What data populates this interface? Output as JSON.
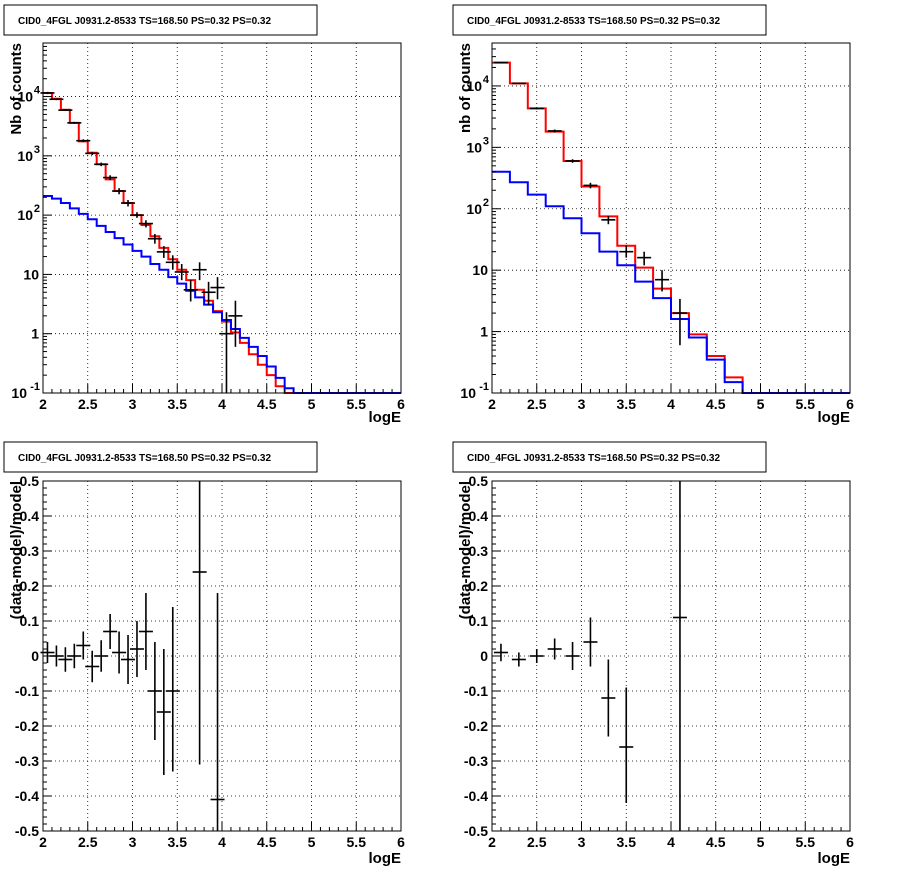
{
  "chart_data": [
    {
      "type": "line",
      "panel": "top-left",
      "title": "CID0_4FGL J0931.2-8533 TS=168.50 PS=0.32 PS=0.32",
      "xlabel": "logE",
      "ylabel": "Nb of counts",
      "xlim": [
        2,
        6
      ],
      "ylim": [
        0.1,
        80000
      ],
      "yscale": "log",
      "xticks": [
        "2",
        "2.5",
        "3",
        "3.5",
        "4",
        "4.5",
        "5",
        "5.5",
        "6"
      ],
      "yticks": [
        {
          "v": 0.1,
          "label": "10",
          "exp": "-1"
        },
        {
          "v": 1,
          "label": "1",
          "exp": ""
        },
        {
          "v": 10,
          "label": "10",
          "exp": ""
        },
        {
          "v": 100,
          "label": "10",
          "exp": "2"
        },
        {
          "v": 1000,
          "label": "10",
          "exp": "3"
        },
        {
          "v": 10000,
          "label": "10",
          "exp": "4"
        }
      ],
      "grid": true,
      "bin_edges": [
        2.0,
        2.1,
        2.2,
        2.3,
        2.4,
        2.5,
        2.6,
        2.7,
        2.8,
        2.9,
        3.0,
        3.1,
        3.2,
        3.3,
        3.4,
        3.5,
        3.6,
        3.7,
        3.8,
        3.9,
        4.0,
        4.1,
        4.2,
        4.3,
        4.4,
        4.5,
        4.6,
        4.7,
        4.8,
        4.9,
        5.0,
        5.1,
        5.2,
        5.3,
        5.4,
        5.5,
        5.6,
        5.7,
        5.8,
        5.9,
        6.0
      ],
      "series": [
        {
          "color": "#ff0000",
          "values": [
            11500,
            9200,
            6000,
            3600,
            1750,
            1130,
            720,
            400,
            255,
            160,
            100,
            68,
            44,
            28,
            18,
            12,
            8,
            5.5,
            3.6,
            2.4,
            1.6,
            1.05,
            0.7,
            0.45,
            0.3,
            0.2,
            0.13,
            0.1,
            0.1,
            0.1,
            0.1,
            0.1,
            0.1,
            0.1,
            0.1,
            0.1,
            0.1,
            0.1,
            0.1,
            0.1
          ]
        },
        {
          "color": "#0000ff",
          "values": [
            210,
            190,
            160,
            130,
            105,
            85,
            66,
            52,
            41,
            32,
            25,
            20,
            15,
            12,
            9,
            7,
            5.3,
            4.1,
            3.1,
            2.3,
            1.7,
            1.2,
            0.85,
            0.6,
            0.42,
            0.28,
            0.18,
            0.12,
            0.1,
            0.1,
            0.1,
            0.1,
            0.1,
            0.1,
            0.1,
            0.1,
            0.1,
            0.1,
            0.1,
            0.1
          ]
        }
      ],
      "points": [
        {
          "x": 2.05,
          "y": 11500,
          "ylo": 11000,
          "yhi": 12000
        },
        {
          "x": 2.15,
          "y": 9000,
          "ylo": 8700,
          "yhi": 9300
        },
        {
          "x": 2.25,
          "y": 5900,
          "ylo": 5700,
          "yhi": 6100
        },
        {
          "x": 2.35,
          "y": 3600,
          "ylo": 3450,
          "yhi": 3750
        },
        {
          "x": 2.45,
          "y": 1800,
          "ylo": 1700,
          "yhi": 1900
        },
        {
          "x": 2.55,
          "y": 1100,
          "ylo": 1030,
          "yhi": 1170
        },
        {
          "x": 2.65,
          "y": 720,
          "ylo": 670,
          "yhi": 770
        },
        {
          "x": 2.75,
          "y": 430,
          "ylo": 390,
          "yhi": 470
        },
        {
          "x": 2.85,
          "y": 255,
          "ylo": 225,
          "yhi": 285
        },
        {
          "x": 2.95,
          "y": 160,
          "ylo": 140,
          "yhi": 180
        },
        {
          "x": 3.05,
          "y": 100,
          "ylo": 90,
          "yhi": 112
        },
        {
          "x": 3.15,
          "y": 72,
          "ylo": 62,
          "yhi": 82
        },
        {
          "x": 3.25,
          "y": 40,
          "ylo": 33,
          "yhi": 48
        },
        {
          "x": 3.35,
          "y": 24,
          "ylo": 19,
          "yhi": 30
        },
        {
          "x": 3.45,
          "y": 16,
          "ylo": 12,
          "yhi": 21
        },
        {
          "x": 3.55,
          "y": 11,
          "ylo": 8,
          "yhi": 15
        },
        {
          "x": 3.65,
          "y": 5.5,
          "ylo": 3.5,
          "yhi": 8
        },
        {
          "x": 3.75,
          "y": 12,
          "ylo": 8,
          "yhi": 16
        },
        {
          "x": 3.85,
          "y": 5,
          "ylo": 3,
          "yhi": 7.5
        },
        {
          "x": 3.95,
          "y": 6,
          "ylo": 3.8,
          "yhi": 9
        },
        {
          "x": 4.05,
          "y": 1,
          "ylo": 0.1,
          "yhi": 2.3
        },
        {
          "x": 4.15,
          "y": 2,
          "ylo": 0.6,
          "yhi": 3.6
        }
      ]
    },
    {
      "type": "line",
      "panel": "top-right",
      "title": "CID0_4FGL J0931.2-8533 TS=168.50 PS=0.32 PS=0.32",
      "xlabel": "logE",
      "ylabel": "nb of counts",
      "xlim": [
        2,
        6
      ],
      "ylim": [
        0.1,
        50000
      ],
      "yscale": "log",
      "xticks": [
        "2",
        "2.5",
        "3",
        "3.5",
        "4",
        "4.5",
        "5",
        "5.5",
        "6"
      ],
      "yticks": [
        {
          "v": 0.1,
          "label": "10",
          "exp": "-1"
        },
        {
          "v": 1,
          "label": "1",
          "exp": ""
        },
        {
          "v": 10,
          "label": "10",
          "exp": ""
        },
        {
          "v": 100,
          "label": "10",
          "exp": "2"
        },
        {
          "v": 1000,
          "label": "10",
          "exp": "3"
        },
        {
          "v": 10000,
          "label": "10",
          "exp": "4"
        }
      ],
      "grid": true,
      "bin_edges": [
        2.0,
        2.2,
        2.4,
        2.6,
        2.8,
        3.0,
        3.2,
        3.4,
        3.6,
        3.8,
        4.0,
        4.2,
        4.4,
        4.6,
        4.8,
        5.0,
        5.2,
        5.4,
        5.6,
        5.8,
        6.0
      ],
      "series": [
        {
          "color": "#ff0000",
          "values": [
            24000,
            11000,
            4300,
            1800,
            600,
            230,
            75,
            25,
            11,
            5,
            2,
            0.9,
            0.4,
            0.18,
            0.1,
            0.1,
            0.1,
            0.1,
            0.1,
            0.1
          ]
        },
        {
          "color": "#0000ff",
          "values": [
            400,
            270,
            170,
            110,
            70,
            40,
            20,
            12,
            6.5,
            3.5,
            1.6,
            0.8,
            0.35,
            0.15,
            0.1,
            0.1,
            0.1,
            0.1,
            0.1,
            0.1
          ]
        }
      ],
      "points": [
        {
          "x": 2.1,
          "y": 24000,
          "ylo": 23500,
          "yhi": 24500
        },
        {
          "x": 2.3,
          "y": 11000,
          "ylo": 10700,
          "yhi": 11300
        },
        {
          "x": 2.5,
          "y": 4300,
          "ylo": 4150,
          "yhi": 4450
        },
        {
          "x": 2.7,
          "y": 1850,
          "ylo": 1750,
          "yhi": 1950
        },
        {
          "x": 2.9,
          "y": 600,
          "ylo": 560,
          "yhi": 640
        },
        {
          "x": 3.1,
          "y": 240,
          "ylo": 215,
          "yhi": 265
        },
        {
          "x": 3.3,
          "y": 66,
          "ylo": 56,
          "yhi": 76
        },
        {
          "x": 3.5,
          "y": 20,
          "ylo": 16,
          "yhi": 25
        },
        {
          "x": 3.7,
          "y": 16,
          "ylo": 12,
          "yhi": 20
        },
        {
          "x": 3.9,
          "y": 7,
          "ylo": 4.5,
          "yhi": 10
        },
        {
          "x": 4.1,
          "y": 2,
          "ylo": 0.6,
          "yhi": 3.4
        }
      ]
    },
    {
      "type": "scatter",
      "panel": "bottom-left",
      "title": "CID0_4FGL J0931.2-8533 TS=168.50 PS=0.32 PS=0.32",
      "xlabel": "logE",
      "ylabel": "(data-model)/model",
      "xlim": [
        2,
        6
      ],
      "ylim": [
        -0.5,
        0.5
      ],
      "xticks": [
        "2",
        "2.5",
        "3",
        "3.5",
        "4",
        "4.5",
        "5",
        "5.5",
        "6"
      ],
      "yticks": [
        "-0.5",
        "-0.4",
        "-0.3",
        "-0.2",
        "-0.1",
        "0",
        "0.1",
        "0.2",
        "0.3",
        "0.4",
        "0.5"
      ],
      "grid": true,
      "points": [
        {
          "x": 2.05,
          "y": 0.01,
          "ylo": -0.02,
          "yhi": 0.04
        },
        {
          "x": 2.15,
          "y": 0.0,
          "ylo": -0.03,
          "yhi": 0.03
        },
        {
          "x": 2.25,
          "y": -0.01,
          "ylo": -0.045,
          "yhi": 0.025
        },
        {
          "x": 2.35,
          "y": 0.0,
          "ylo": -0.035,
          "yhi": 0.035
        },
        {
          "x": 2.45,
          "y": 0.03,
          "ylo": -0.01,
          "yhi": 0.07
        },
        {
          "x": 2.55,
          "y": -0.03,
          "ylo": -0.075,
          "yhi": 0.015
        },
        {
          "x": 2.65,
          "y": 0.0,
          "ylo": -0.045,
          "yhi": 0.045
        },
        {
          "x": 2.75,
          "y": 0.07,
          "ylo": 0.02,
          "yhi": 0.12
        },
        {
          "x": 2.85,
          "y": 0.01,
          "ylo": -0.05,
          "yhi": 0.07
        },
        {
          "x": 2.95,
          "y": -0.01,
          "ylo": -0.08,
          "yhi": 0.06
        },
        {
          "x": 3.05,
          "y": 0.02,
          "ylo": -0.06,
          "yhi": 0.1
        },
        {
          "x": 3.15,
          "y": 0.07,
          "ylo": -0.04,
          "yhi": 0.18
        },
        {
          "x": 3.25,
          "y": -0.1,
          "ylo": -0.24,
          "yhi": 0.04
        },
        {
          "x": 3.35,
          "y": -0.16,
          "ylo": -0.34,
          "yhi": 0.02
        },
        {
          "x": 3.45,
          "y": -0.1,
          "ylo": -0.33,
          "yhi": 0.14
        },
        {
          "x": 3.75,
          "y": 0.24,
          "ylo": -0.31,
          "yhi": 0.5
        },
        {
          "x": 3.95,
          "y": -0.41,
          "ylo": -0.5,
          "yhi": 0.18
        }
      ]
    },
    {
      "type": "scatter",
      "panel": "bottom-right",
      "title": "CID0_4FGL J0931.2-8533 TS=168.50 PS=0.32 PS=0.32",
      "xlabel": "logE",
      "ylabel": "(data-model)/model",
      "xlim": [
        2,
        6
      ],
      "ylim": [
        -0.5,
        0.5
      ],
      "xticks": [
        "2",
        "2.5",
        "3",
        "3.5",
        "4",
        "4.5",
        "5",
        "5.5",
        "6"
      ],
      "yticks": [
        "-0.5",
        "-0.4",
        "-0.3",
        "-0.2",
        "-0.1",
        "0",
        "0.1",
        "0.2",
        "0.3",
        "0.4",
        "0.5"
      ],
      "grid": true,
      "points": [
        {
          "x": 2.1,
          "y": 0.01,
          "ylo": -0.015,
          "yhi": 0.035
        },
        {
          "x": 2.3,
          "y": -0.01,
          "ylo": -0.03,
          "yhi": 0.01
        },
        {
          "x": 2.5,
          "y": 0.0,
          "ylo": -0.02,
          "yhi": 0.02
        },
        {
          "x": 2.7,
          "y": 0.02,
          "ylo": -0.01,
          "yhi": 0.05
        },
        {
          "x": 2.9,
          "y": 0.0,
          "ylo": -0.04,
          "yhi": 0.04
        },
        {
          "x": 3.1,
          "y": 0.04,
          "ylo": -0.03,
          "yhi": 0.11
        },
        {
          "x": 3.3,
          "y": -0.12,
          "ylo": -0.23,
          "yhi": -0.01
        },
        {
          "x": 3.5,
          "y": -0.26,
          "ylo": -0.42,
          "yhi": -0.09
        },
        {
          "x": 4.1,
          "y": 0.11,
          "ylo": -0.5,
          "yhi": 0.5
        }
      ]
    }
  ]
}
